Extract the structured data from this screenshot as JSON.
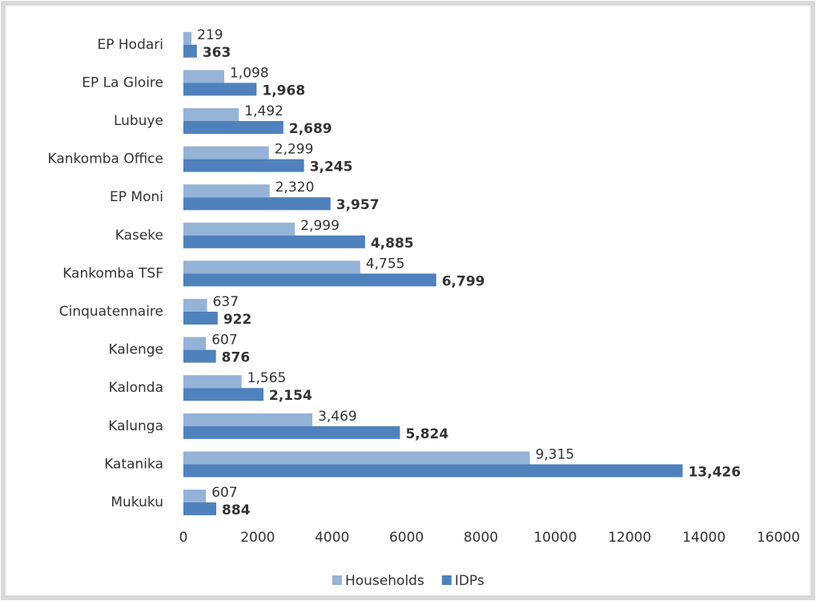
{
  "chart_data": {
    "type": "bar",
    "orientation": "horizontal",
    "categories": [
      "EP Hodari",
      "EP La Gloire",
      "Lubuye",
      "Kankomba Office",
      "EP Moni",
      "Kaseke",
      "Kankomba TSF",
      "Cinquatennaire",
      "Kalenge",
      "Kalonda",
      "Kalunga",
      "Katanika",
      "Mukuku"
    ],
    "series": [
      {
        "name": "Households",
        "color": "#95b3d7",
        "values": [
          219,
          1098,
          1492,
          2299,
          2320,
          2999,
          4755,
          637,
          607,
          1565,
          3469,
          9315,
          607
        ],
        "value_labels": [
          "219",
          "1,098",
          "1,492",
          "2,299",
          "2,320",
          "2,999",
          "4,755",
          "637",
          "607",
          "1,565",
          "3,469",
          "9,315",
          "607"
        ]
      },
      {
        "name": "IDPs",
        "color": "#4f81bd",
        "values": [
          363,
          1968,
          2689,
          3245,
          3957,
          4885,
          6799,
          922,
          876,
          2154,
          5824,
          13426,
          884
        ],
        "value_labels": [
          "363",
          "1,968",
          "2,689",
          "3,245",
          "3,957",
          "4,885",
          "6,799",
          "922",
          "876",
          "2,154",
          "5,824",
          "13,426",
          "884"
        ]
      }
    ],
    "xlim": [
      0,
      16000
    ],
    "xticks": [
      0,
      2000,
      4000,
      6000,
      8000,
      10000,
      12000,
      14000,
      16000
    ],
    "grid": false,
    "legend": "bottom"
  }
}
